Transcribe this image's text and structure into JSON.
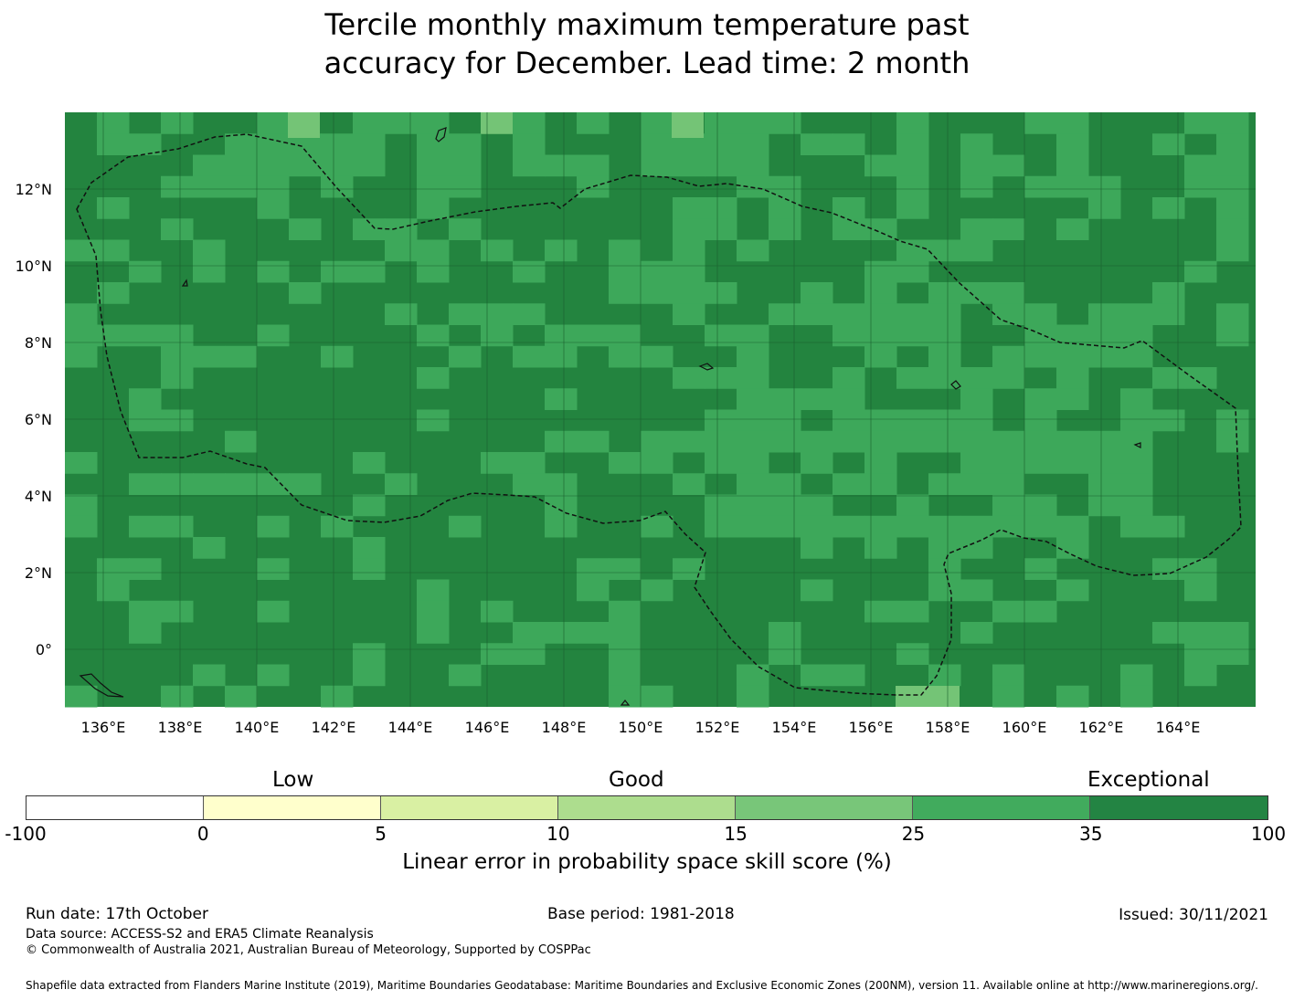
{
  "title": {
    "line1": "Tercile monthly maximum temperature past",
    "line2": "accuracy for December. Lead time: 2 month"
  },
  "map": {
    "lon_labels": [
      "136°E",
      "138°E",
      "140°E",
      "142°E",
      "144°E",
      "146°E",
      "148°E",
      "150°E",
      "152°E",
      "154°E",
      "156°E",
      "158°E",
      "160°E",
      "162°E",
      "164°E"
    ],
    "lon_values": [
      136,
      138,
      140,
      142,
      144,
      146,
      148,
      150,
      152,
      154,
      156,
      158,
      160,
      162,
      164
    ],
    "lat_labels": [
      "12°N",
      "10°N",
      "8°N",
      "6°N",
      "4°N",
      "2°N",
      "0°"
    ],
    "lat_values": [
      12,
      10,
      8,
      6,
      4,
      2,
      0
    ],
    "lon_range": [
      135,
      166
    ],
    "lat_range": [
      -1.5,
      14
    ],
    "colors": {
      "exceptional_dark": "#23843f",
      "exceptional": "#3da85a",
      "good_high": "#74c476"
    },
    "eez_boundary": "dashed"
  },
  "legend": {
    "category_low": "Low",
    "category_good": "Good",
    "category_exceptional": "Exceptional",
    "ticks": [
      "-100",
      "0",
      "5",
      "10",
      "15",
      "25",
      "35",
      "100"
    ],
    "colors": [
      "#ffffff",
      "#ffffcc",
      "#d9f0a3",
      "#addd8e",
      "#78c679",
      "#41ab5d",
      "#238443"
    ],
    "label": "Linear error in probability space skill score (%)"
  },
  "footer": {
    "run_date": "Run date: 17th October",
    "base_period": "Base period: 1981-2018",
    "issued": "Issued: 30/11/2021",
    "data_source": "Data source: ACCESS-S2 and ERA5 Climate Reanalysis",
    "copyright": "© Commonwealth of Australia 2021, Australian Bureau of Meteorology, Supported by COSPPac",
    "shapefile": "Shapefile data extracted from Flanders Marine Institute (2019), Maritime Boundaries Geodatabase: Maritime Boundaries and Exclusive Economic Zones (200NM), version 11. Available online at http://www.marineregions.org/."
  }
}
